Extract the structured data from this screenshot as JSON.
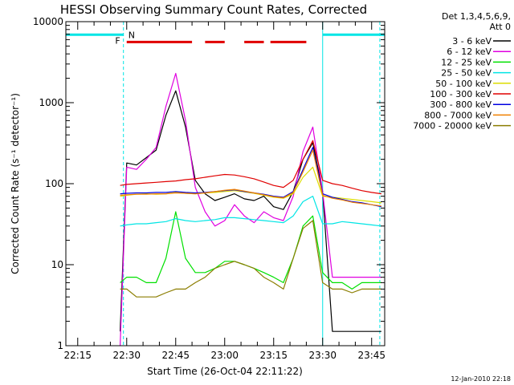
{
  "chart_data": {
    "type": "line",
    "title": "HESSI Observing Summary Count Rates, Corrected",
    "xlabel": "Start Time (26-Oct-04 22:11:22)",
    "ylabel": "Corrected Count Rate (s⁻¹ detector⁻¹)",
    "y_scale": "log",
    "ylim": [
      1,
      10000
    ],
    "xlim": [
      "22:11:22",
      "23:49:00"
    ],
    "x_ticks": [
      "22:15",
      "22:30",
      "22:45",
      "23:00",
      "23:15",
      "23:30",
      "23:45"
    ],
    "y_ticks": [
      "1",
      "10",
      "100",
      "1000",
      "10000"
    ],
    "legend_header": [
      "Det 1,3,4,5,6,9,",
      "Att 0"
    ],
    "legend_position": "right",
    "timestamp": "12-Jan-2010 22:18",
    "flags": {
      "labels": [
        "F",
        "N"
      ],
      "night_color": "#00e5e5",
      "flare_color": "#e00000",
      "night_bars": [
        [
          "22:11:22",
          "22:29:00"
        ],
        [
          "23:30:00",
          "23:49:00"
        ]
      ],
      "flare_bars": [
        [
          "22:30:00",
          "22:50:00"
        ],
        [
          "22:54:00",
          "23:00:00"
        ],
        [
          "23:06:00",
          "23:12:00"
        ],
        [
          "23:14:00",
          "23:25:00"
        ]
      ],
      "night_edges": [
        "22:29:00",
        "23:30:00",
        "23:47:30"
      ]
    },
    "x": [
      "22:28",
      "22:30",
      "22:33",
      "22:36",
      "22:39",
      "22:42",
      "22:45",
      "22:48",
      "22:51",
      "22:54",
      "22:57",
      "23:00",
      "23:03",
      "23:06",
      "23:09",
      "23:12",
      "23:15",
      "23:18",
      "23:21",
      "23:24",
      "23:27",
      "23:30",
      "23:33",
      "23:36",
      "23:39",
      "23:42",
      "23:45",
      "23:48"
    ],
    "series": [
      {
        "name": "3 - 6 keV",
        "color": "#000000",
        "values": [
          1.5,
          180,
          170,
          210,
          260,
          700,
          1400,
          500,
          110,
          75,
          62,
          68,
          75,
          65,
          62,
          70,
          52,
          48,
          80,
          200,
          320,
          80,
          1.5,
          1.5,
          1.5,
          1.5,
          1.5,
          1.5
        ]
      },
      {
        "name": "6 - 12 keV",
        "color": "#e000e0",
        "values": [
          1,
          160,
          150,
          200,
          280,
          900,
          2300,
          600,
          90,
          45,
          30,
          35,
          55,
          40,
          33,
          45,
          38,
          35,
          70,
          250,
          500,
          80,
          7,
          7,
          7,
          7,
          7,
          7
        ]
      },
      {
        "name": "12 - 25 keV",
        "color": "#00e000",
        "values": [
          6,
          7,
          7,
          6,
          6,
          12,
          45,
          12,
          8,
          8,
          9,
          11,
          11,
          10,
          9,
          8,
          7,
          6,
          12,
          30,
          40,
          8,
          6,
          6,
          5,
          6,
          6,
          6
        ]
      },
      {
        "name": "25 - 50 keV",
        "color": "#00e5e5",
        "values": [
          30,
          31,
          32,
          32,
          33,
          34,
          37,
          35,
          34,
          35,
          36,
          38,
          38,
          37,
          36,
          35,
          34,
          33,
          40,
          60,
          70,
          32,
          32,
          34,
          33,
          32,
          31,
          30
        ]
      },
      {
        "name": "50 - 100 keV",
        "color": "#dddd00",
        "values": [
          70,
          72,
          74,
          75,
          74,
          75,
          78,
          76,
          75,
          77,
          78,
          80,
          82,
          79,
          76,
          72,
          68,
          66,
          75,
          120,
          160,
          70,
          68,
          66,
          64,
          62,
          60,
          58
        ]
      },
      {
        "name": "100 - 300 keV",
        "color": "#e00000",
        "values": [
          95,
          98,
          100,
          102,
          104,
          106,
          108,
          112,
          115,
          120,
          125,
          130,
          128,
          122,
          115,
          105,
          95,
          90,
          110,
          200,
          340,
          110,
          100,
          95,
          88,
          82,
          78,
          75
        ]
      },
      {
        "name": "300 - 800 keV",
        "color": "#0000e0",
        "values": [
          75,
          76,
          77,
          77,
          78,
          78,
          80,
          78,
          77,
          78,
          80,
          82,
          84,
          80,
          77,
          74,
          70,
          68,
          80,
          150,
          280,
          75,
          68,
          64,
          60,
          58,
          55,
          52
        ]
      },
      {
        "name": "800 - 7000 keV",
        "color": "#f08000",
        "values": [
          72,
          73,
          74,
          74,
          75,
          75,
          77,
          76,
          75,
          77,
          80,
          83,
          85,
          81,
          77,
          73,
          69,
          67,
          78,
          140,
          260,
          72,
          66,
          63,
          59,
          57,
          55,
          53
        ]
      },
      {
        "name": "7000 - 20000 keV",
        "color": "#8b7d00",
        "values": [
          5,
          5,
          4,
          4,
          4,
          4.5,
          5,
          5,
          6,
          7,
          9,
          10,
          11,
          10,
          9,
          7,
          6,
          5,
          12,
          28,
          35,
          6,
          5,
          5,
          4.5,
          5,
          5,
          5
        ]
      }
    ]
  }
}
